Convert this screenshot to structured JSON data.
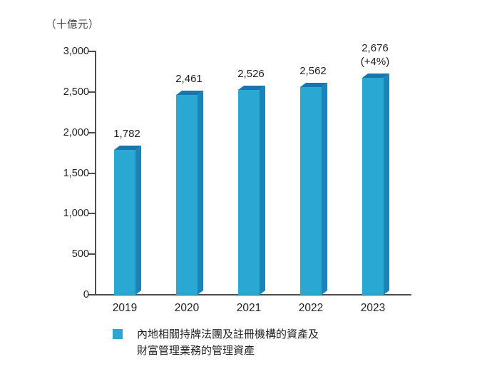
{
  "chart_data": {
    "type": "bar",
    "unit_label": "（十億元）",
    "categories": [
      "2019",
      "2020",
      "2021",
      "2022",
      "2023"
    ],
    "values": [
      1782,
      2461,
      2526,
      2562,
      2676
    ],
    "value_labels": [
      "1,782",
      "2,461",
      "2,526",
      "2,562",
      "2,676"
    ],
    "annotations": [
      "",
      "",
      "",
      "",
      "(+4%)"
    ],
    "ylim": [
      0,
      3000
    ],
    "ytick_step": 500,
    "ytick_labels": [
      "0",
      "500",
      "1,000",
      "1,500",
      "2,000",
      "2,500",
      "3,000"
    ],
    "grid": false,
    "legend_position": "bottom",
    "legend_lines": [
      "內地相關持牌法團及註冊機構的資產及",
      "財富管理業務的管理資產"
    ],
    "colors": {
      "bar_front": "#29a8d4",
      "bar_top": "#1776ad",
      "bar_side": "#1a84b8",
      "axis": "#4d4d4f",
      "text": "#231f20",
      "unit_text": "#414042"
    }
  }
}
